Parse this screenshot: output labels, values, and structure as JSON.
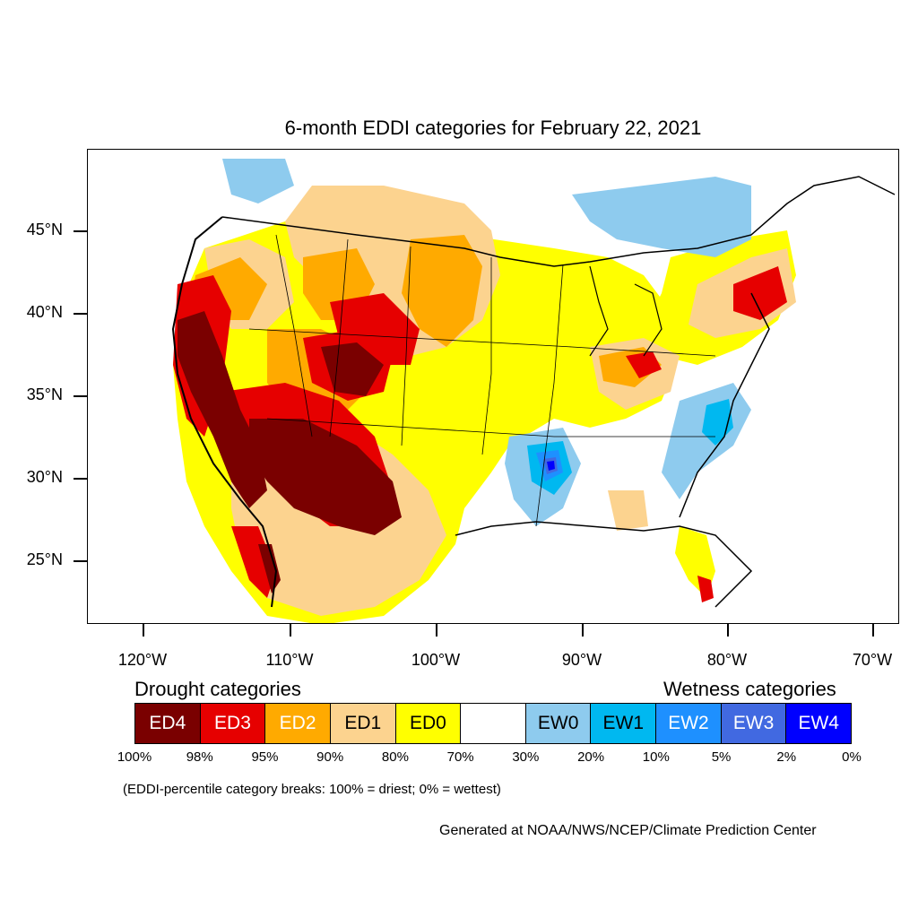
{
  "title": "6-month EDDI categories for February 22, 2021",
  "axes": {
    "y_ticks": [
      "45°N",
      "40°N",
      "35°N",
      "30°N",
      "25°N"
    ],
    "x_ticks": [
      "120°W",
      "110°W",
      "100°W",
      "90°W",
      "80°W",
      "70°W"
    ]
  },
  "legend": {
    "drought_heading": "Drought categories",
    "wetness_heading": "Wetness categories",
    "categories": [
      {
        "label": "ED4",
        "color": "#7a0000",
        "text_color": "#ffffff"
      },
      {
        "label": "ED3",
        "color": "#e60000",
        "text_color": "#ffffff"
      },
      {
        "label": "ED2",
        "color": "#ffaa00",
        "text_color": "#ffffff"
      },
      {
        "label": "ED1",
        "color": "#fcd38f",
        "text_color": "#000000"
      },
      {
        "label": "ED0",
        "color": "#ffff00",
        "text_color": "#000000"
      },
      {
        "label": "",
        "color": "#ffffff",
        "text_color": "#000000"
      },
      {
        "label": "EW0",
        "color": "#8ecbee",
        "text_color": "#000000"
      },
      {
        "label": "EW1",
        "color": "#00b8f0",
        "text_color": "#000000"
      },
      {
        "label": "EW2",
        "color": "#1e90ff",
        "text_color": "#ffffff"
      },
      {
        "label": "EW3",
        "color": "#4169e1",
        "text_color": "#ffffff"
      },
      {
        "label": "EW4",
        "color": "#0000ff",
        "text_color": "#ffffff"
      }
    ],
    "percentiles": [
      "100%",
      "98%",
      "95%",
      "90%",
      "80%",
      "70%",
      "30%",
      "20%",
      "10%",
      "5%",
      "2%",
      "0%"
    ]
  },
  "note": "(EDDI-percentile category breaks: 100% = driest; 0% = wettest)",
  "credit": "Generated at NOAA/NWS/NCEP/Climate Prediction Center"
}
